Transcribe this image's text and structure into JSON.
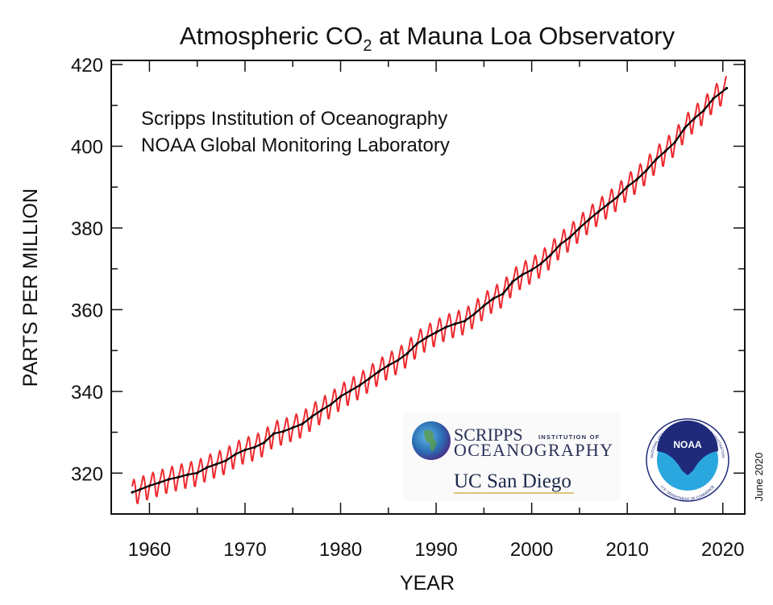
{
  "chart_data": {
    "type": "line",
    "title": "Atmospheric CO",
    "title_subscript": "2",
    "title_suffix": " at Mauna Loa Observatory",
    "annotations": [
      "Scripps Institution of Oceanography",
      "NOAA Global Monitoring Laboratory"
    ],
    "date_note": "June 2020",
    "xlabel": "YEAR",
    "ylabel": "PARTS PER MILLION",
    "xlim": [
      1956,
      2022.3
    ],
    "ylim": [
      310,
      421
    ],
    "x_ticks": [
      1960,
      1970,
      1980,
      1990,
      2000,
      2010,
      2020
    ],
    "x_tick_labels": [
      "1960",
      "1970",
      "1980",
      "1990",
      "2000",
      "2010",
      "2020"
    ],
    "y_ticks": [
      320,
      340,
      360,
      380,
      400,
      420
    ],
    "y_tick_labels": [
      "320",
      "340",
      "360",
      "380",
      "400",
      "420"
    ],
    "grid": false,
    "colors": {
      "monthly": "#ee2a2f",
      "trend": "#000000",
      "scripps_globe": "#2b6fb5",
      "noaa_dark": "#1f2a7a",
      "noaa_light": "#2aa7df"
    },
    "series": [
      {
        "key": "monthly",
        "color": "#ee2a2f",
        "seasonal_cycle_ppm_by_month": [
          0.0,
          0.7,
          1.4,
          2.5,
          3.0,
          2.4,
          0.9,
          -1.2,
          -3.0,
          -3.2,
          -2.0,
          -0.8
        ]
      },
      {
        "key": "trend",
        "color": "#000000",
        "x": [
          1958.2,
          1959,
          1960,
          1961,
          1962,
          1963,
          1964,
          1965,
          1966,
          1967,
          1968,
          1969,
          1970,
          1971,
          1972,
          1973,
          1974,
          1975,
          1976,
          1977,
          1978,
          1979,
          1980,
          1981,
          1982,
          1983,
          1984,
          1985,
          1986,
          1987,
          1988,
          1989,
          1990,
          1991,
          1992,
          1993,
          1994,
          1995,
          1996,
          1997,
          1998,
          1999,
          2000,
          2001,
          2002,
          2003,
          2004,
          2005,
          2006,
          2007,
          2008,
          2009,
          2010,
          2011,
          2012,
          2013,
          2014,
          2015,
          2016,
          2017,
          2018,
          2019,
          2020.4
        ],
        "y": [
          315.3,
          315.97,
          316.91,
          317.64,
          318.45,
          318.99,
          319.62,
          320.04,
          321.37,
          322.18,
          323.05,
          324.62,
          325.68,
          326.32,
          327.46,
          329.68,
          330.19,
          331.12,
          332.03,
          333.84,
          335.41,
          336.84,
          338.76,
          340.12,
          341.48,
          343.15,
          344.85,
          346.35,
          347.61,
          349.31,
          351.69,
          353.2,
          354.45,
          355.7,
          356.54,
          357.21,
          358.96,
          360.97,
          362.74,
          363.88,
          366.84,
          368.54,
          369.71,
          371.32,
          373.45,
          375.98,
          377.7,
          379.98,
          382.09,
          384.02,
          385.83,
          387.64,
          390.1,
          391.85,
          394.06,
          396.74,
          398.81,
          401.01,
          404.41,
          406.76,
          408.72,
          411.66,
          414.2
        ]
      }
    ]
  },
  "logos": {
    "scripps": {
      "line1": "SCRIPPS",
      "line1_small": "INSTITUTION OF",
      "line2": "OCEANOGRAPHY",
      "line3": "UC San Diego"
    },
    "noaa": {
      "center": "NOAA",
      "ring_top": "NATIONAL OCEANIC AND ATMOSPHERIC ADMINISTRATION",
      "ring_bottom": "U.S. DEPARTMENT OF COMMERCE"
    }
  }
}
